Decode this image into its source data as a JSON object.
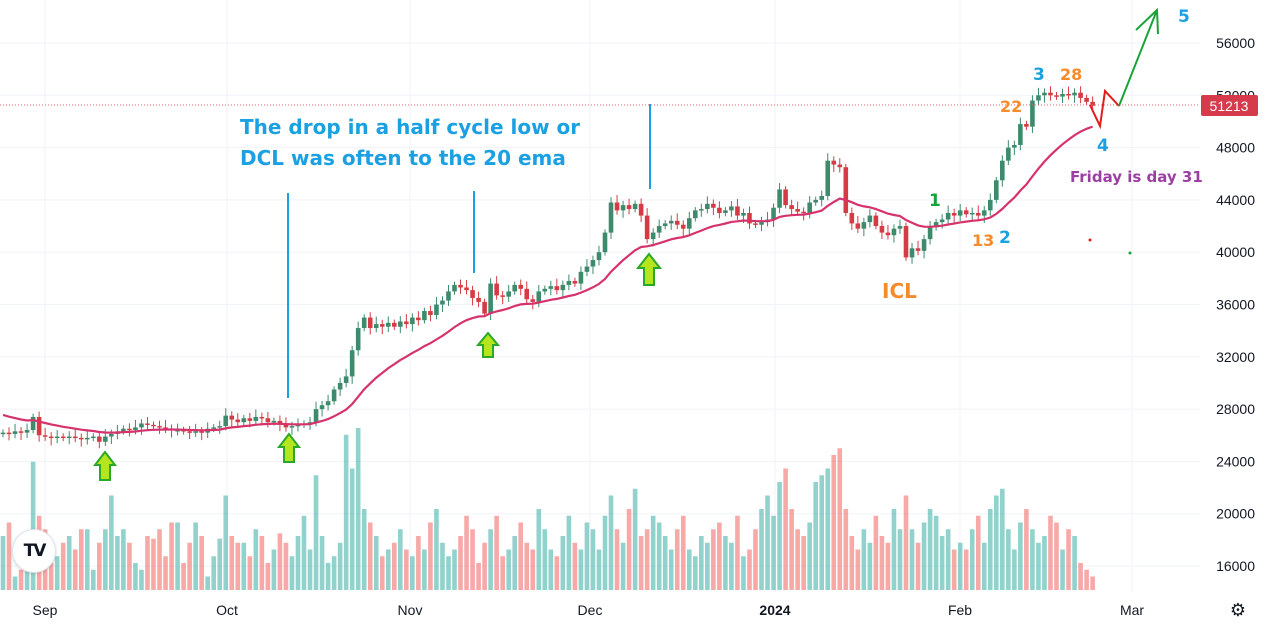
{
  "chart_data": {
    "type": "candlestick",
    "title": "",
    "y_axis": {
      "ticks": [
        16000,
        20000,
        24000,
        28000,
        32000,
        36000,
        40000,
        44000,
        48000,
        52000,
        56000
      ],
      "ylim": [
        16000,
        56000
      ],
      "position": "right"
    },
    "x_axis": {
      "ticks": [
        "Sep",
        "Oct",
        "Nov",
        "Dec",
        "2024",
        "Feb",
        "Mar"
      ]
    },
    "last_price": "51213",
    "closes_thousands": [
      26.2,
      26.1,
      26.3,
      26.2,
      26.4,
      27.4,
      26.0,
      25.9,
      25.8,
      25.9,
      25.8,
      25.9,
      25.8,
      25.7,
      25.8,
      25.9,
      25.5,
      25.9,
      26.1,
      26.3,
      26.5,
      26.4,
      26.6,
      26.9,
      26.8,
      26.7,
      26.6,
      26.5,
      26.4,
      26.4,
      26.3,
      26.2,
      26.3,
      26.2,
      26.5,
      26.6,
      26.7,
      27.5,
      27.2,
      27.0,
      27.3,
      27.1,
      27.4,
      27.3,
      27.0,
      27.1,
      26.8,
      26.6,
      26.7,
      26.8,
      26.9,
      27.0,
      28.0,
      28.3,
      28.6,
      29.5,
      30.0,
      30.5,
      32.5,
      34.2,
      35.0,
      34.2,
      34.5,
      34.3,
      34.6,
      34.3,
      34.7,
      34.5,
      35.0,
      34.8,
      35.5,
      35.2,
      36.0,
      36.3,
      37.0,
      37.5,
      37.3,
      37.1,
      36.5,
      36.2,
      35.3,
      37.6,
      36.7,
      36.6,
      37.0,
      37.5,
      37.2,
      36.4,
      36.2,
      37.0,
      37.2,
      37.4,
      37.1,
      37.5,
      37.8,
      37.6,
      38.5,
      38.9,
      39.4,
      40.0,
      41.5,
      43.8,
      43.2,
      43.6,
      43.3,
      43.7,
      42.8,
      41.0,
      41.5,
      42.0,
      42.2,
      42.4,
      42.1,
      41.8,
      42.6,
      43.2,
      43.3,
      43.7,
      43.4,
      43.0,
      43.2,
      43.5,
      42.8,
      43.0,
      42.2,
      42.1,
      42.3,
      42.5,
      43.4,
      44.8,
      43.6,
      43.3,
      43.1,
      43.0,
      43.8,
      44.0,
      44.3,
      47.0,
      46.7,
      46.5,
      43.0,
      42.2,
      41.8,
      42.3,
      42.8,
      42.0,
      41.5,
      41.3,
      41.8,
      42.0,
      39.6,
      40.3,
      40.1,
      41.0,
      41.9,
      42.3,
      42.5,
      43.0,
      42.8,
      43.2,
      42.9,
      43.0,
      42.8,
      43.2,
      44.0,
      45.5,
      47.0,
      48.0,
      48.2,
      49.8,
      49.6,
      51.6,
      52.0,
      52.2,
      52.0,
      51.9,
      52.1,
      52.0,
      52.2,
      51.8,
      51.5,
      51.2
    ],
    "volume_relative": [
      40,
      50,
      10,
      15,
      30,
      95,
      55,
      45,
      20,
      25,
      35,
      40,
      30,
      45,
      45,
      15,
      35,
      45,
      70,
      40,
      45,
      35,
      20,
      15,
      40,
      38,
      45,
      25,
      50,
      50,
      20,
      35,
      50,
      40,
      10,
      25,
      38,
      70,
      40,
      35,
      35,
      25,
      45,
      40,
      20,
      30,
      42,
      35,
      25,
      40,
      55,
      30,
      85,
      40,
      20,
      25,
      35,
      115,
      90,
      120,
      60,
      50,
      40,
      25,
      30,
      35,
      45,
      30,
      25,
      40,
      30,
      50,
      60,
      35,
      25,
      30,
      40,
      55,
      45,
      20,
      35,
      45,
      55,
      25,
      30,
      40,
      50,
      35,
      30,
      60,
      45,
      30,
      25,
      40,
      55,
      35,
      30,
      50,
      45,
      30,
      55,
      70,
      45,
      35,
      60,
      75,
      40,
      45,
      55,
      50,
      40,
      30,
      45,
      55,
      30,
      25,
      40,
      35,
      45,
      50,
      40,
      35,
      55,
      25,
      30,
      45,
      60,
      70,
      55,
      80,
      90,
      60,
      45,
      40,
      50,
      80,
      85,
      90,
      100,
      105,
      60,
      40,
      30,
      45,
      35,
      55,
      40,
      35,
      60,
      45,
      70,
      45,
      35,
      50,
      60,
      55,
      40,
      45,
      30,
      35,
      30,
      45,
      55,
      35,
      60,
      70,
      75,
      45,
      30,
      50,
      60,
      45,
      35,
      40,
      55,
      50,
      30,
      45,
      40,
      20,
      15,
      10
    ],
    "series": [
      {
        "name": "20 EMA",
        "color": "#d6336c"
      }
    ],
    "annotations": {
      "headline_1": "The drop in a half cycle low or",
      "headline_2": "DCL was often to the 20 ema",
      "icl": "ICL",
      "n1": "1",
      "n13": "13",
      "n2": "2",
      "n22": "22",
      "n3": "3",
      "n28": "28",
      "n4": "4",
      "n5": "5",
      "friday": "Friday is day 31"
    },
    "colors": {
      "up": "#26a69a",
      "down": "#ef5350",
      "up_body": "#3d8b6c",
      "down_body": "#d63b45",
      "blue": "#1ba1e2",
      "orange": "#f68b2c",
      "green": "#1aa33a",
      "purple": "#9c3fa3"
    }
  },
  "logo_text": "TV"
}
